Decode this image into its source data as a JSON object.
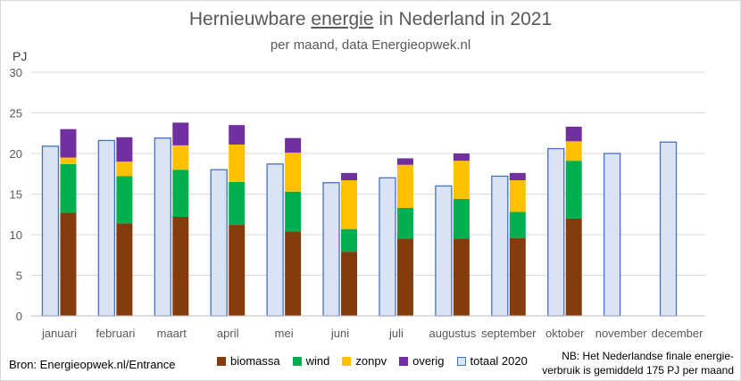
{
  "title": {
    "prefix": "Hernieuwbare ",
    "underlined": "energie",
    "suffix": " in Nederland in 2021"
  },
  "subtitle": "per maand, data Energieopwek.nl",
  "unit_label": "PJ",
  "source": "Bron: Energieopwek.nl/Entrance",
  "note_line1": "NB: Het Nederlandse finale energie-",
  "note_line2": "verbruik is gemiddeld 175 PJ per maand",
  "colors": {
    "biomassa": "#843c0c",
    "wind": "#00b050",
    "zonpv": "#ffc000",
    "overig": "#7030a0",
    "totaal_fill": "#dae3f3",
    "totaal_stroke": "#4472c4",
    "grid": "#d9d9d9"
  },
  "legend": [
    {
      "key": "biomassa",
      "label": "biomassa"
    },
    {
      "key": "wind",
      "label": "wind"
    },
    {
      "key": "zonpv",
      "label": "zonpv"
    },
    {
      "key": "overig",
      "label": "overig"
    },
    {
      "key": "totaal",
      "label": "totaal 2020"
    }
  ],
  "chart_data": {
    "type": "bar",
    "categories": [
      "januari",
      "februari",
      "maart",
      "april",
      "mei",
      "juni",
      "juli",
      "augustus",
      "september",
      "oktober",
      "november",
      "december"
    ],
    "ylim": [
      0,
      30
    ],
    "yticks": [
      0,
      5,
      10,
      15,
      20,
      25,
      30
    ],
    "ylabel": "PJ",
    "grid": true,
    "legend_position": "bottom",
    "series": [
      {
        "name": "biomassa",
        "stacked": true,
        "values": [
          12.7,
          11.4,
          12.2,
          11.2,
          10.4,
          7.9,
          9.5,
          9.5,
          9.6,
          12.0,
          null,
          null
        ]
      },
      {
        "name": "wind",
        "stacked": true,
        "values": [
          6.0,
          5.8,
          5.8,
          5.3,
          4.9,
          2.8,
          3.8,
          4.9,
          3.2,
          7.1,
          null,
          null
        ]
      },
      {
        "name": "zonpv",
        "stacked": true,
        "values": [
          0.8,
          1.8,
          3.0,
          4.6,
          4.8,
          6.0,
          5.3,
          4.7,
          3.9,
          2.4,
          null,
          null
        ]
      },
      {
        "name": "overig",
        "stacked": true,
        "values": [
          3.5,
          3.0,
          2.8,
          2.4,
          1.8,
          0.9,
          0.8,
          0.9,
          0.9,
          1.8,
          null,
          null
        ]
      },
      {
        "name": "totaal 2020",
        "stacked": false,
        "values": [
          20.9,
          21.6,
          21.9,
          18.0,
          18.7,
          16.4,
          17.0,
          16.0,
          17.2,
          20.6,
          20.0,
          21.4
        ]
      }
    ]
  }
}
